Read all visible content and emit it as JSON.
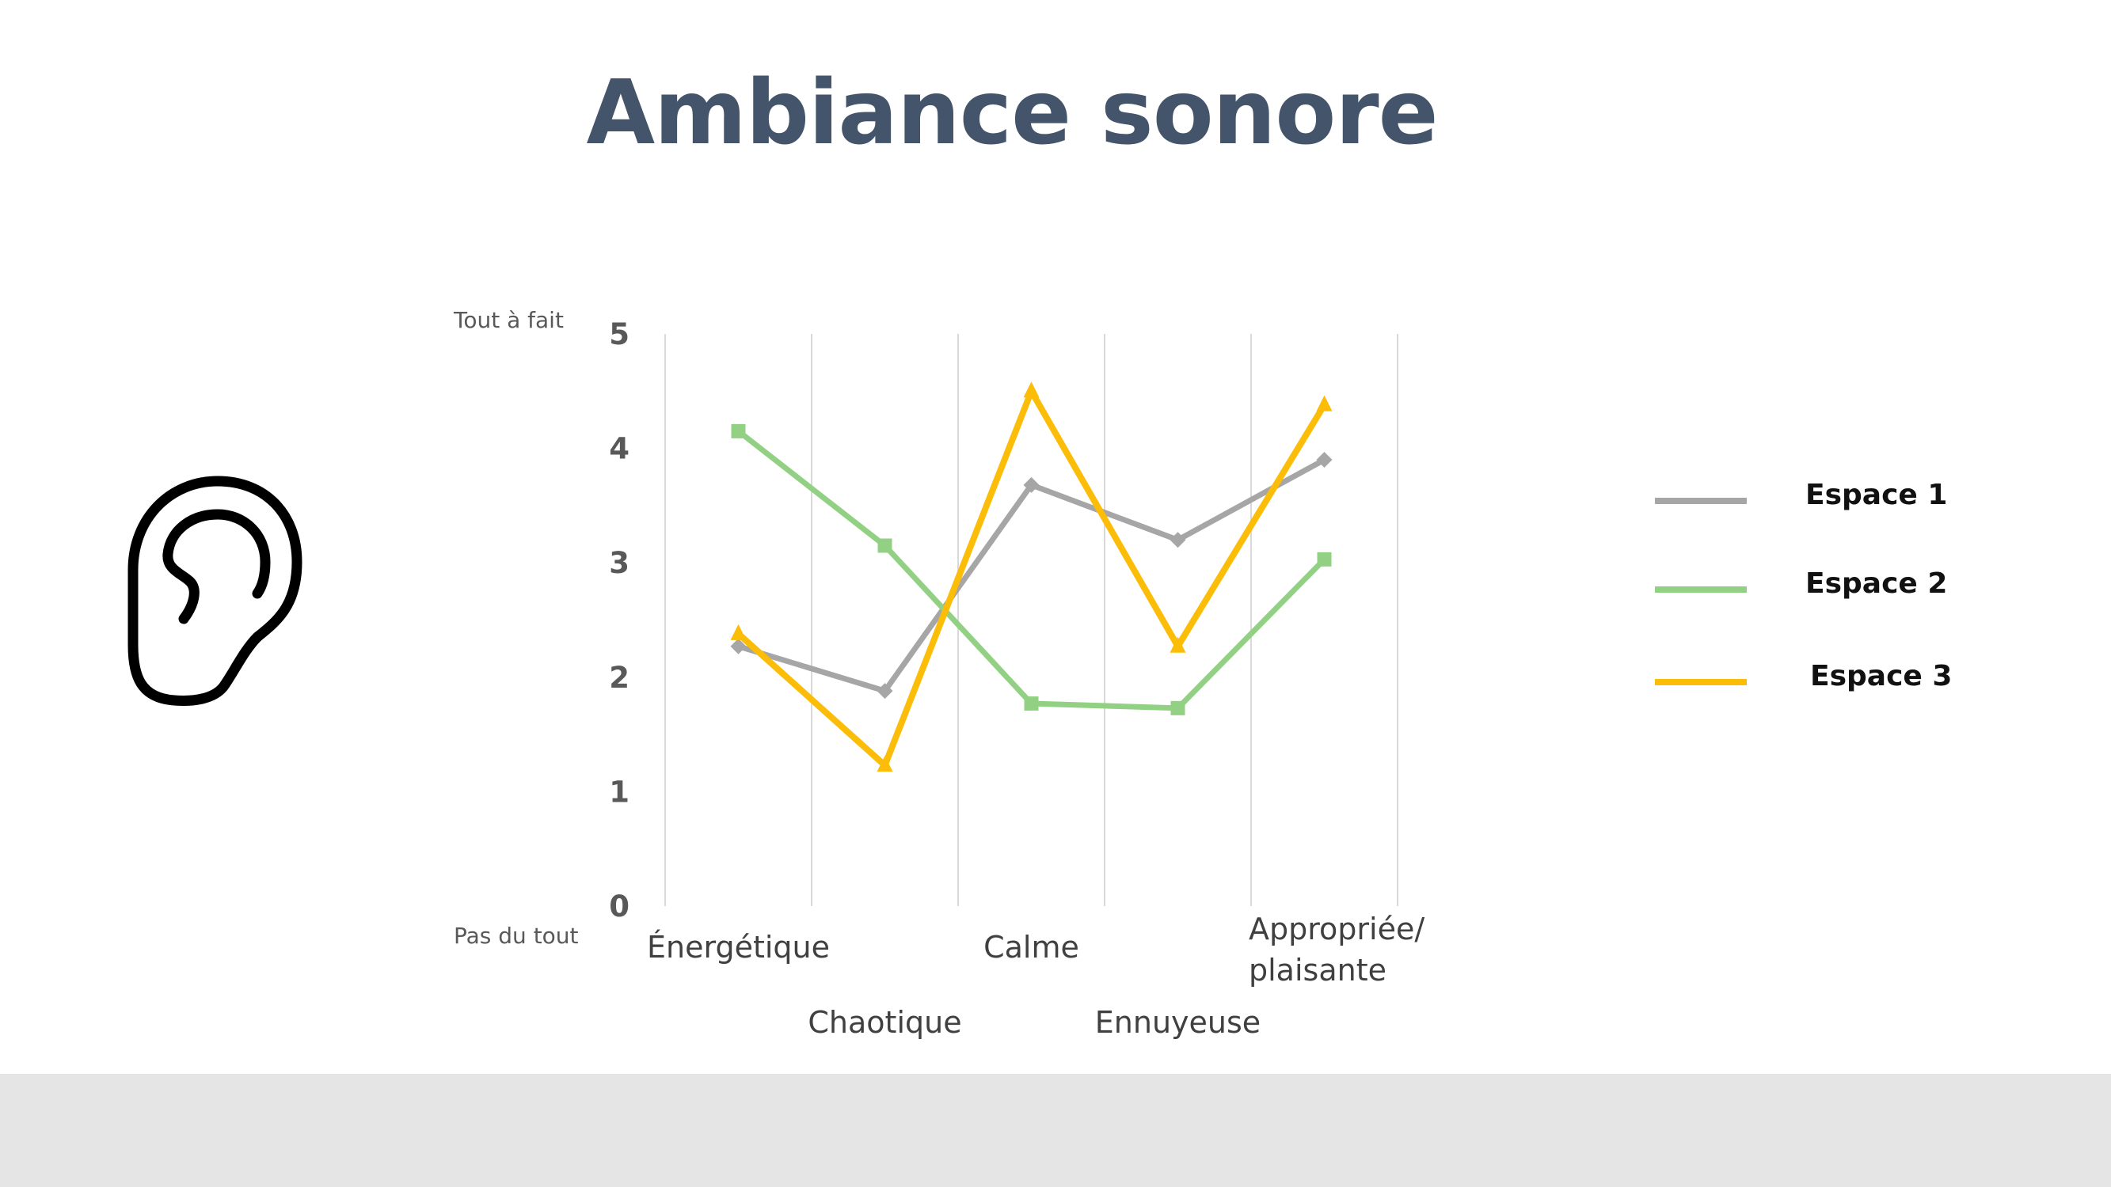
{
  "page": {
    "title": "Ambiance sonore"
  },
  "icons": {
    "ear": "ear-icon"
  },
  "chart_data": {
    "type": "line",
    "y_top_note": "Tout à fait",
    "y_bottom_note": "Pas du tout",
    "ylim": [
      0,
      5
    ],
    "yticks": [
      "0",
      "1",
      "2",
      "3",
      "4",
      "5"
    ],
    "categories": [
      "Énergétique",
      "Chaotique",
      "Calme",
      "Ennuyeuse",
      "Appropriée/ plaisante"
    ],
    "category_lines": [
      [
        "Énergétique"
      ],
      [
        "Chaotique"
      ],
      [
        "Calme"
      ],
      [
        "Ennuyeuse"
      ],
      [
        "Appropriée/",
        "plaisante"
      ]
    ],
    "grid": "vertical",
    "legend_position": "right",
    "series": [
      {
        "name": "Espace 1",
        "color": "#a6a6a6",
        "marker": "diamond",
        "values": [
          2.27,
          1.88,
          3.68,
          3.2,
          3.9
        ]
      },
      {
        "name": "Espace 2",
        "color": "#92d184",
        "marker": "square",
        "values": [
          4.15,
          3.15,
          1.77,
          1.73,
          3.03
        ]
      },
      {
        "name": "Espace 3",
        "color": "#fbbd08",
        "marker": "triangle",
        "values": [
          2.38,
          1.23,
          4.5,
          2.27,
          4.38
        ]
      }
    ]
  }
}
